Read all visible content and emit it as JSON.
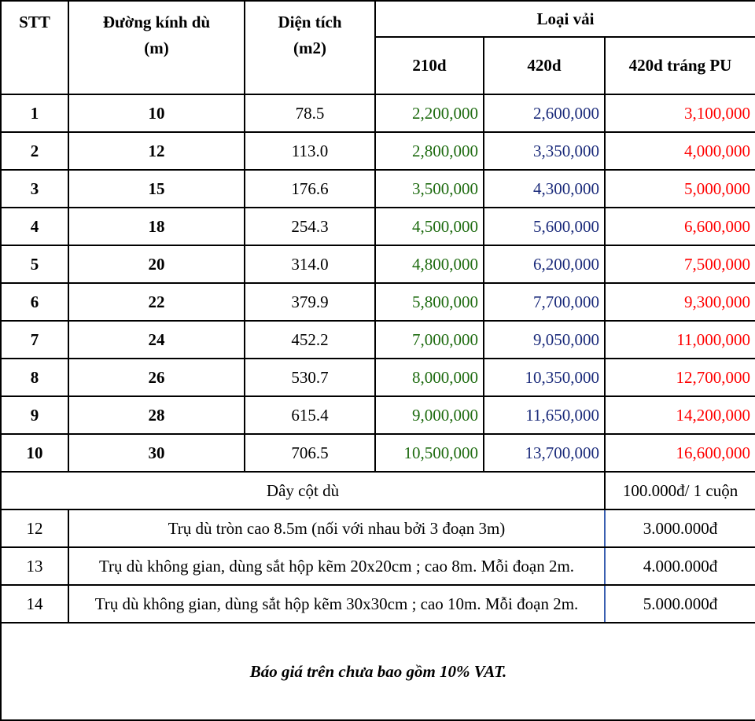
{
  "header": {
    "stt": "STT",
    "diameter_line1": "Đường kính dù",
    "diameter_line2": "(m)",
    "area_line1": "Diện tích",
    "area_line2": "(m2)",
    "fabric_type": "Loại vải",
    "fabric_columns": [
      "210d",
      "420d",
      "420d tráng PU"
    ]
  },
  "rows": [
    {
      "stt": "1",
      "diameter": "10",
      "area": "78.5",
      "p210": "2,200,000",
      "p420": "2,600,000",
      "p420pu": "3,100,000"
    },
    {
      "stt": "2",
      "diameter": "12",
      "area": "113.0",
      "p210": "2,800,000",
      "p420": "3,350,000",
      "p420pu": "4,000,000"
    },
    {
      "stt": "3",
      "diameter": "15",
      "area": "176.6",
      "p210": "3,500,000",
      "p420": "4,300,000",
      "p420pu": "5,000,000"
    },
    {
      "stt": "4",
      "diameter": "18",
      "area": "254.3",
      "p210": "4,500,000",
      "p420": "5,600,000",
      "p420pu": "6,600,000"
    },
    {
      "stt": "5",
      "diameter": "20",
      "area": "314.0",
      "p210": "4,800,000",
      "p420": "6,200,000",
      "p420pu": "7,500,000"
    },
    {
      "stt": "6",
      "diameter": "22",
      "area": "379.9",
      "p210": "5,800,000",
      "p420": "7,700,000",
      "p420pu": "9,300,000"
    },
    {
      "stt": "7",
      "diameter": "24",
      "area": "452.2",
      "p210": "7,000,000",
      "p420": "9,050,000",
      "p420pu": "11,000,000"
    },
    {
      "stt": "8",
      "diameter": "26",
      "area": "530.7",
      "p210": "8,000,000",
      "p420": "10,350,000",
      "p420pu": "12,700,000"
    },
    {
      "stt": "9",
      "diameter": "28",
      "area": "615.4",
      "p210": "9,000,000",
      "p420": "11,650,000",
      "p420pu": "14,200,000"
    },
    {
      "stt": "10",
      "diameter": "30",
      "area": "706.5",
      "p210": "10,500,000",
      "p420": "13,700,000",
      "p420pu": "16,600,000"
    }
  ],
  "rope": {
    "label": "Dây cột dù",
    "price": "100.000đ/ 1 cuộn"
  },
  "extras": [
    {
      "stt": "12",
      "desc": "Trụ dù tròn cao 8.5m (nối với nhau bởi 3 đoạn 3m)",
      "price": "3.000.000đ"
    },
    {
      "stt": "13",
      "desc": "Trụ dù không gian, dùng sắt hộp kẽm 20x20cm ; cao 8m. Mỗi đoạn 2m.",
      "price": "4.000.000đ"
    },
    {
      "stt": "14",
      "desc": "Trụ dù không gian, dùng sắt hộp kẽm 30x30cm ; cao 10m. Mỗi đoạn 2m.",
      "price": "5.000.000đ"
    }
  ],
  "note": "Báo giá trên chưa bao gồm 10% VAT.",
  "colors": {
    "col_210d": "#1e6b10",
    "col_420d": "#1a2a7a",
    "col_420d_pu": "#ff0000"
  }
}
